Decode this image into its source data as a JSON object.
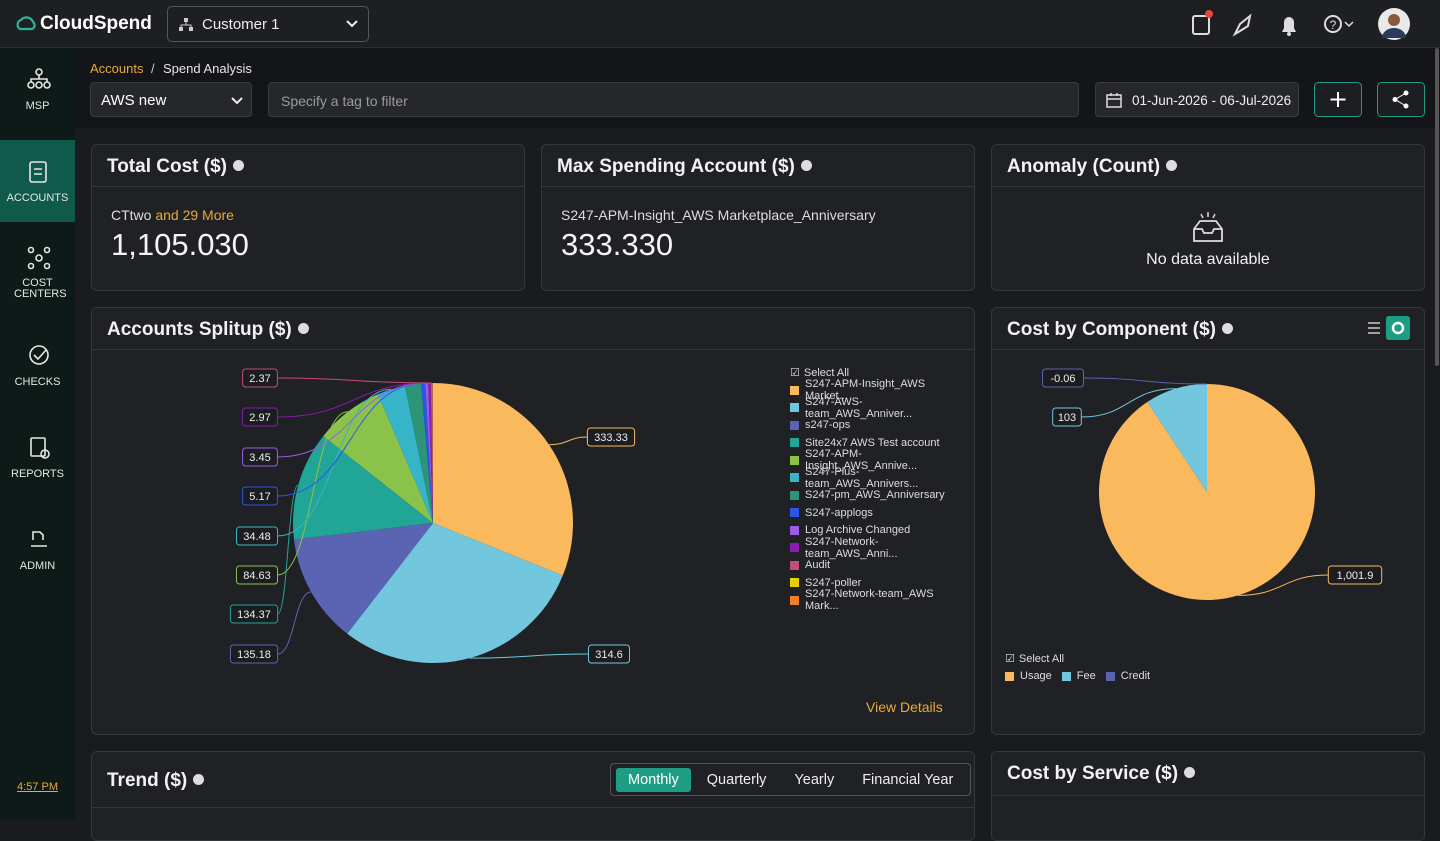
{
  "header": {
    "brand": "CloudSpend",
    "customer": "Customer 1"
  },
  "sidebar": {
    "items": [
      "MSP",
      "ACCOUNTS",
      "COST CENTERS",
      "CHECKS",
      "REPORTS",
      "ADMIN"
    ],
    "time": "4:57 PM"
  },
  "breadcrumb": [
    "Accounts",
    "Spend Analysis"
  ],
  "filters": {
    "account": "AWS new",
    "tag_placeholder": "Specify a tag to filter",
    "date_range": "01-Jun-2026 - 06-Jul-2026"
  },
  "cards": {
    "total_cost": {
      "title": "Total Cost ($)",
      "account": "CTtwo",
      "more": "and 29 More",
      "value": "1,105.030"
    },
    "max_spending": {
      "title": "Max Spending Account ($)",
      "account": "S247-APM-Insight_AWS Marketplace_Anniversary",
      "value": "333.330"
    },
    "anomaly": {
      "title": "Anomaly (Count)",
      "empty": "No data available"
    }
  },
  "chart_data": [
    {
      "type": "pie",
      "title": "Accounts Splitup ($)",
      "select_all": "Select All",
      "link": "View Details",
      "categories": [
        "S247-APM-Insight_AWS Market...",
        "S247-AWS-team_AWS_Anniver...",
        "s247-ops",
        "Site24x7 AWS Test account",
        "S247-APM-Insight_AWS_Annive...",
        "S247-Plus-team_AWS_Annivers...",
        "S247-pm_AWS_Anniversary",
        "S247-applogs",
        "Log Archive Changed",
        "S247-Network-team_AWS_Anni...",
        "Audit",
        "S247-poller",
        "S247-Network-team_AWS Mark..."
      ],
      "values": [
        333.33,
        314.6,
        135.18,
        134.37,
        84.63,
        34.48,
        20,
        5.17,
        3.45,
        2.97,
        2.37,
        0.3,
        0.2
      ],
      "value_labels": [
        "333.33",
        "314.6",
        "135.18",
        "134.37",
        "84.63",
        "34.48",
        null,
        "5.17",
        "3.45",
        "2.97",
        "2.37",
        null,
        null
      ],
      "colors": [
        "#f9b95c",
        "#72c7de",
        "#5b64b3",
        "#21a596",
        "#8bc34a",
        "#36b5c8",
        "#2d9478",
        "#2d55e8",
        "#9b5de5",
        "#8c1bb0",
        "#c44d7a",
        "#e6d200",
        "#f07f2a"
      ]
    },
    {
      "type": "pie",
      "title": "Cost by Component ($)",
      "select_all": "Select All",
      "categories": [
        "Usage",
        "Fee",
        "Credit"
      ],
      "values": [
        1001.9,
        103,
        -0.06
      ],
      "value_labels": [
        "1,001.9",
        "103",
        "-0.06"
      ],
      "colors": [
        "#f9b95c",
        "#72c7de",
        "#5a63b0"
      ]
    }
  ],
  "trend": {
    "title": "Trend ($)",
    "tabs": [
      "Monthly",
      "Quarterly",
      "Yearly",
      "Financial Year"
    ]
  },
  "cost_by_service": {
    "title": "Cost by Service ($)"
  }
}
